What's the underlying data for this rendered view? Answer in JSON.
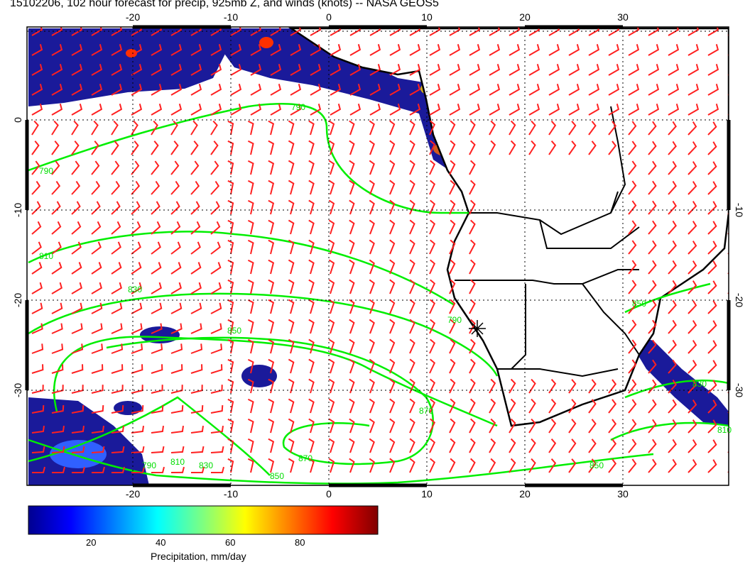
{
  "title": "15102206, 102 hour forecast for precip, 925mb Z, and winds (knots) -- NASA GEOS5",
  "map": {
    "lon_ticks_bottom": [
      "-20",
      "-10",
      "0",
      "10",
      "20",
      "30"
    ],
    "lon_ticks_top": [
      "-20",
      "-10",
      "0",
      "10",
      "20",
      "30"
    ],
    "lat_ticks_left": [
      "0",
      "-10",
      "-20",
      "-30"
    ],
    "lat_ticks_right": [
      "-10",
      "-20",
      "-30"
    ],
    "contour_labels": [
      "790",
      "790",
      "810",
      "830",
      "850",
      "870",
      "870",
      "850",
      "830",
      "810",
      "790",
      "790",
      "850",
      "830",
      "810",
      "850"
    ],
    "colors": {
      "contour": "#00ee00",
      "barb": "#ff2020",
      "coast": "#000000",
      "precip_low": "#00008f",
      "precip_high": "#800000"
    }
  },
  "colorbar": {
    "title": "Precipitation, mm/day",
    "ticks": [
      "20",
      "40",
      "60",
      "80"
    ],
    "min": 0,
    "max": 100
  }
}
